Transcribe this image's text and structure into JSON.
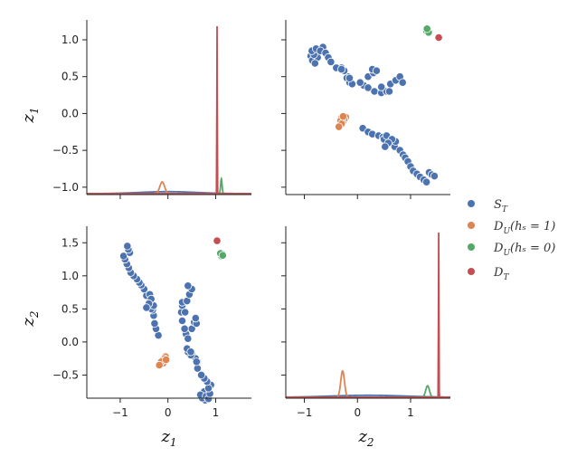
{
  "colors": {
    "S_T": "#4c72b0",
    "DU_hs1": "#dd8452",
    "DU_hs0": "#55a868",
    "D_T": "#c44e52"
  },
  "chart_data": {
    "type": "scatter",
    "layout": "pairplot",
    "variables": [
      "z1",
      "z2"
    ],
    "axis_labels": {
      "z1": {
        "base": "z",
        "sub": "1"
      },
      "z2": {
        "base": "z",
        "sub": "2"
      }
    },
    "ticks": {
      "z1_values": [
        1.0,
        0.5,
        0.0,
        -0.5,
        -1.0
      ],
      "z1_labels": [
        "1.0",
        "0.5",
        "0.0",
        "−0.5",
        "−1.0"
      ],
      "z2_values": [
        1.5,
        1.0,
        0.5,
        0.0,
        -0.5
      ],
      "z2_labels": [
        "1.5",
        "1.0",
        "0.5",
        "0.0",
        "−0.5"
      ],
      "x_values": [
        -1,
        0,
        1
      ],
      "x_labels": [
        "−1",
        "0",
        "1"
      ]
    },
    "ranges": {
      "z1_x": [
        -1.7,
        1.75
      ],
      "z1_y": [
        -1.1,
        1.27
      ],
      "z2_x": [
        -1.35,
        1.75
      ],
      "z2_y": [
        -0.85,
        1.75
      ]
    },
    "legend": {
      "position": "right",
      "entries": [
        {
          "key": "S_T",
          "base": "S",
          "sub": "T",
          "suffix": ""
        },
        {
          "key": "DU_hs1",
          "base": "D",
          "sub": "U",
          "suffix": "(hₛ = 1)"
        },
        {
          "key": "DU_hs0",
          "base": "D",
          "sub": "U",
          "suffix": "(hₛ = 0)"
        },
        {
          "key": "D_T",
          "base": "D",
          "sub": "T",
          "suffix": ""
        }
      ]
    },
    "series": [
      {
        "key": "S_T",
        "z1": [
          0.78,
          0.72,
          0.76,
          0.68,
          0.62,
          0.5,
          0.58,
          0.48,
          0.42,
          0.4,
          0.38,
          0.5,
          0.55,
          0.6,
          0.58,
          0.8,
          0.85,
          0.88,
          0.9,
          0.85,
          0.82,
          0.76,
          0.7,
          0.62,
          0.6,
          0.48,
          0.42,
          0.35,
          0.3,
          0.28,
          0.3,
          0.36,
          0.3,
          0.4,
          0.45,
          0.5,
          0.42,
          -0.2,
          -0.25,
          -0.28,
          -0.3,
          -0.32,
          -0.35,
          -0.3,
          -0.38,
          -0.45,
          -0.5,
          -0.56,
          -0.6,
          -0.65,
          -0.72,
          -0.78,
          -0.82,
          -0.86,
          -0.9,
          -0.93,
          -0.8,
          -0.83,
          -0.85,
          -0.38,
          -0.35,
          -0.4,
          -0.45
        ],
        "z2": [
          -0.88,
          -0.85,
          -0.75,
          -0.8,
          -0.3,
          -0.18,
          -0.25,
          -0.2,
          -0.15,
          -0.1,
          0.12,
          0.2,
          0.3,
          0.28,
          0.36,
          -0.82,
          -0.86,
          -0.78,
          -0.65,
          -0.7,
          -0.6,
          -0.55,
          -0.5,
          -0.4,
          -0.3,
          -0.15,
          0.05,
          0.2,
          0.32,
          0.45,
          0.55,
          0.45,
          0.6,
          0.62,
          0.72,
          0.8,
          0.85,
          0.1,
          0.2,
          0.28,
          0.4,
          0.48,
          0.5,
          0.55,
          0.62,
          0.7,
          0.8,
          0.86,
          0.9,
          0.95,
          1.0,
          1.05,
          1.12,
          1.18,
          1.25,
          1.3,
          1.35,
          1.4,
          1.45,
          0.72,
          0.65,
          0.58,
          0.52
        ]
      },
      {
        "key": "DU_hs1",
        "z1": [
          -0.05,
          -0.08,
          -0.12,
          -0.06,
          -0.1,
          -0.14,
          -0.18,
          -0.04
        ],
        "z2": [
          -0.22,
          -0.25,
          -0.28,
          -0.3,
          -0.32,
          -0.3,
          -0.35,
          -0.27
        ]
      },
      {
        "key": "DU_hs0",
        "z1": [
          1.12,
          1.14,
          1.1,
          1.15
        ],
        "z2": [
          1.3,
          1.33,
          1.34,
          1.31
        ]
      },
      {
        "key": "D_T",
        "z1": [
          1.03
        ],
        "z2": [
          1.53
        ]
      }
    ],
    "density": {
      "z1": [
        {
          "key": "S_T",
          "mu": 0.0,
          "sigma": 0.6,
          "peak": 0.012
        },
        {
          "key": "DU_hs1",
          "mu": -0.12,
          "sigma": 0.05,
          "peak": 0.07
        },
        {
          "key": "DU_hs0",
          "mu": 1.12,
          "sigma": 0.015,
          "peak": 0.09
        },
        {
          "key": "D_T",
          "mu": 1.03,
          "sigma": 0.004,
          "peak": 1.0
        }
      ],
      "z2": [
        {
          "key": "S_T",
          "mu": 0.2,
          "sigma": 0.7,
          "peak": 0.012
        },
        {
          "key": "DU_hs1",
          "mu": -0.28,
          "sigma": 0.035,
          "peak": 0.16
        },
        {
          "key": "DU_hs0",
          "mu": 1.32,
          "sigma": 0.035,
          "peak": 0.07
        },
        {
          "key": "D_T",
          "mu": 1.53,
          "sigma": 0.004,
          "peak": 1.0
        }
      ]
    }
  }
}
